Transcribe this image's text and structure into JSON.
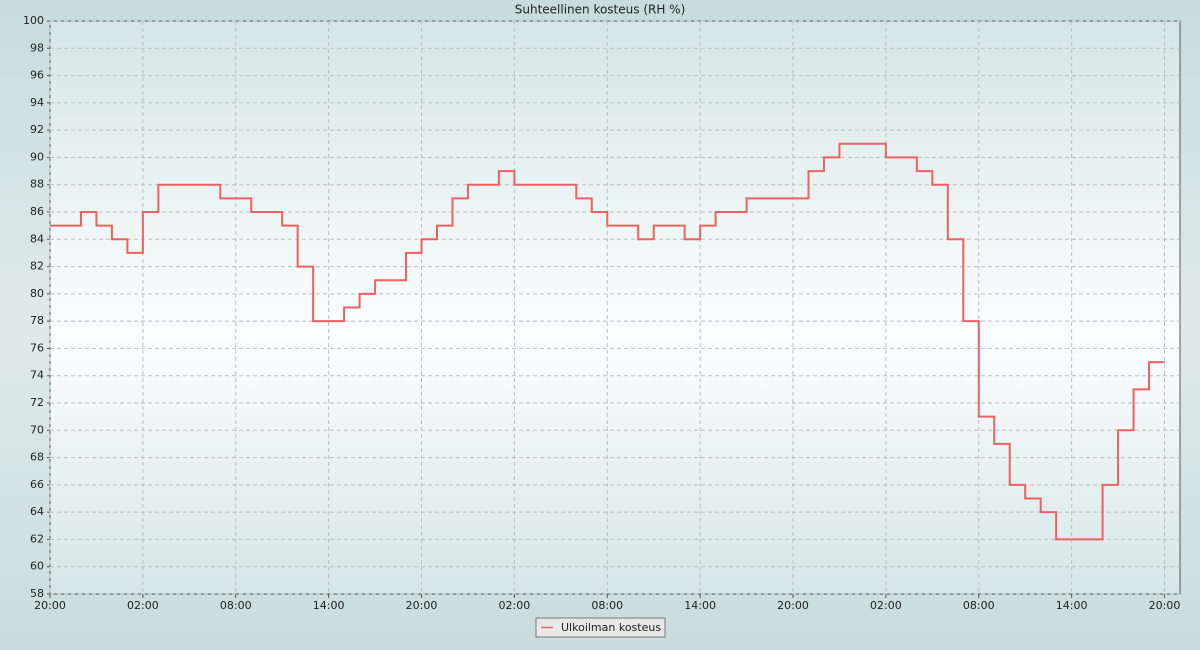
{
  "chart_data": {
    "type": "line",
    "title": "Suhteellinen kosteus (RH %)",
    "step": true,
    "grid": true,
    "legend": "bottom",
    "x": [
      0,
      1,
      2,
      3,
      4,
      5,
      6,
      7,
      8,
      9,
      10,
      11,
      12,
      13,
      14,
      15,
      16,
      17,
      18,
      19,
      20,
      21,
      22,
      23,
      24,
      25,
      26,
      27,
      28,
      29,
      30,
      31,
      32,
      33,
      34,
      35,
      36,
      37,
      38,
      39,
      40,
      41,
      42,
      43,
      44,
      45,
      46,
      47,
      48,
      49,
      50,
      51,
      52,
      53,
      54,
      55,
      56,
      57,
      58,
      59,
      60,
      61,
      62,
      63,
      64,
      65,
      66,
      67,
      68,
      69,
      70,
      71,
      72
    ],
    "series": [
      {
        "name": "Ulkoilman kosteus",
        "color": "#f06060",
        "values": [
          85,
          85,
          86,
          85,
          84,
          83,
          86,
          88,
          88,
          88,
          88,
          87,
          87,
          86,
          86,
          85,
          82,
          78,
          78,
          79,
          80,
          81,
          81,
          83,
          84,
          85,
          87,
          88,
          88,
          89,
          88,
          88,
          88,
          88,
          87,
          86,
          85,
          85,
          84,
          85,
          85,
          84,
          85,
          86,
          86,
          87,
          87,
          87,
          87,
          89,
          90,
          91,
          91,
          91,
          90,
          90,
          89,
          88,
          84,
          78,
          71,
          69,
          66,
          65,
          64,
          62,
          62,
          62,
          66,
          70,
          73,
          75,
          75
        ]
      }
    ],
    "xlim": [
      0,
      73
    ],
    "xticks": [
      {
        "value": 0,
        "label": "20:00"
      },
      {
        "value": 6,
        "label": "02:00"
      },
      {
        "value": 12,
        "label": "08:00"
      },
      {
        "value": 18,
        "label": "14:00"
      },
      {
        "value": 24,
        "label": "20:00"
      },
      {
        "value": 30,
        "label": "02:00"
      },
      {
        "value": 36,
        "label": "08:00"
      },
      {
        "value": 42,
        "label": "14:00"
      },
      {
        "value": 48,
        "label": "20:00"
      },
      {
        "value": 54,
        "label": "02:00"
      },
      {
        "value": 60,
        "label": "08:00"
      },
      {
        "value": 66,
        "label": "14:00"
      },
      {
        "value": 72,
        "label": "20:00"
      }
    ],
    "ylim": [
      58,
      100
    ],
    "yticks": [
      58,
      60,
      62,
      64,
      66,
      68,
      70,
      72,
      74,
      76,
      78,
      80,
      82,
      84,
      86,
      88,
      90,
      92,
      94,
      96,
      98,
      100
    ]
  }
}
